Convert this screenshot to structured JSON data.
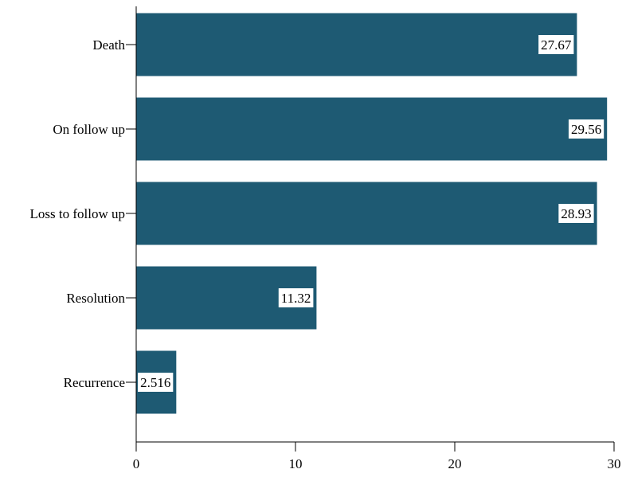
{
  "chart_data": {
    "type": "bar",
    "orientation": "horizontal",
    "categories": [
      "Death",
      "On follow up",
      "Loss to follow up",
      "Resolution",
      "Recurrence"
    ],
    "values": [
      27.67,
      29.56,
      28.93,
      11.32,
      2.516
    ],
    "data_labels": [
      "27.67",
      "29.56",
      "28.93",
      "11.32",
      "2.516"
    ],
    "xlim": [
      0,
      30
    ],
    "x_ticks": [
      0,
      10,
      20,
      30
    ],
    "x_tick_labels": [
      "0",
      "10",
      "20",
      "30"
    ],
    "title": "",
    "xlabel": "",
    "ylabel": "",
    "grid": false,
    "legend": "none",
    "bar_color": "#1e5a73"
  }
}
